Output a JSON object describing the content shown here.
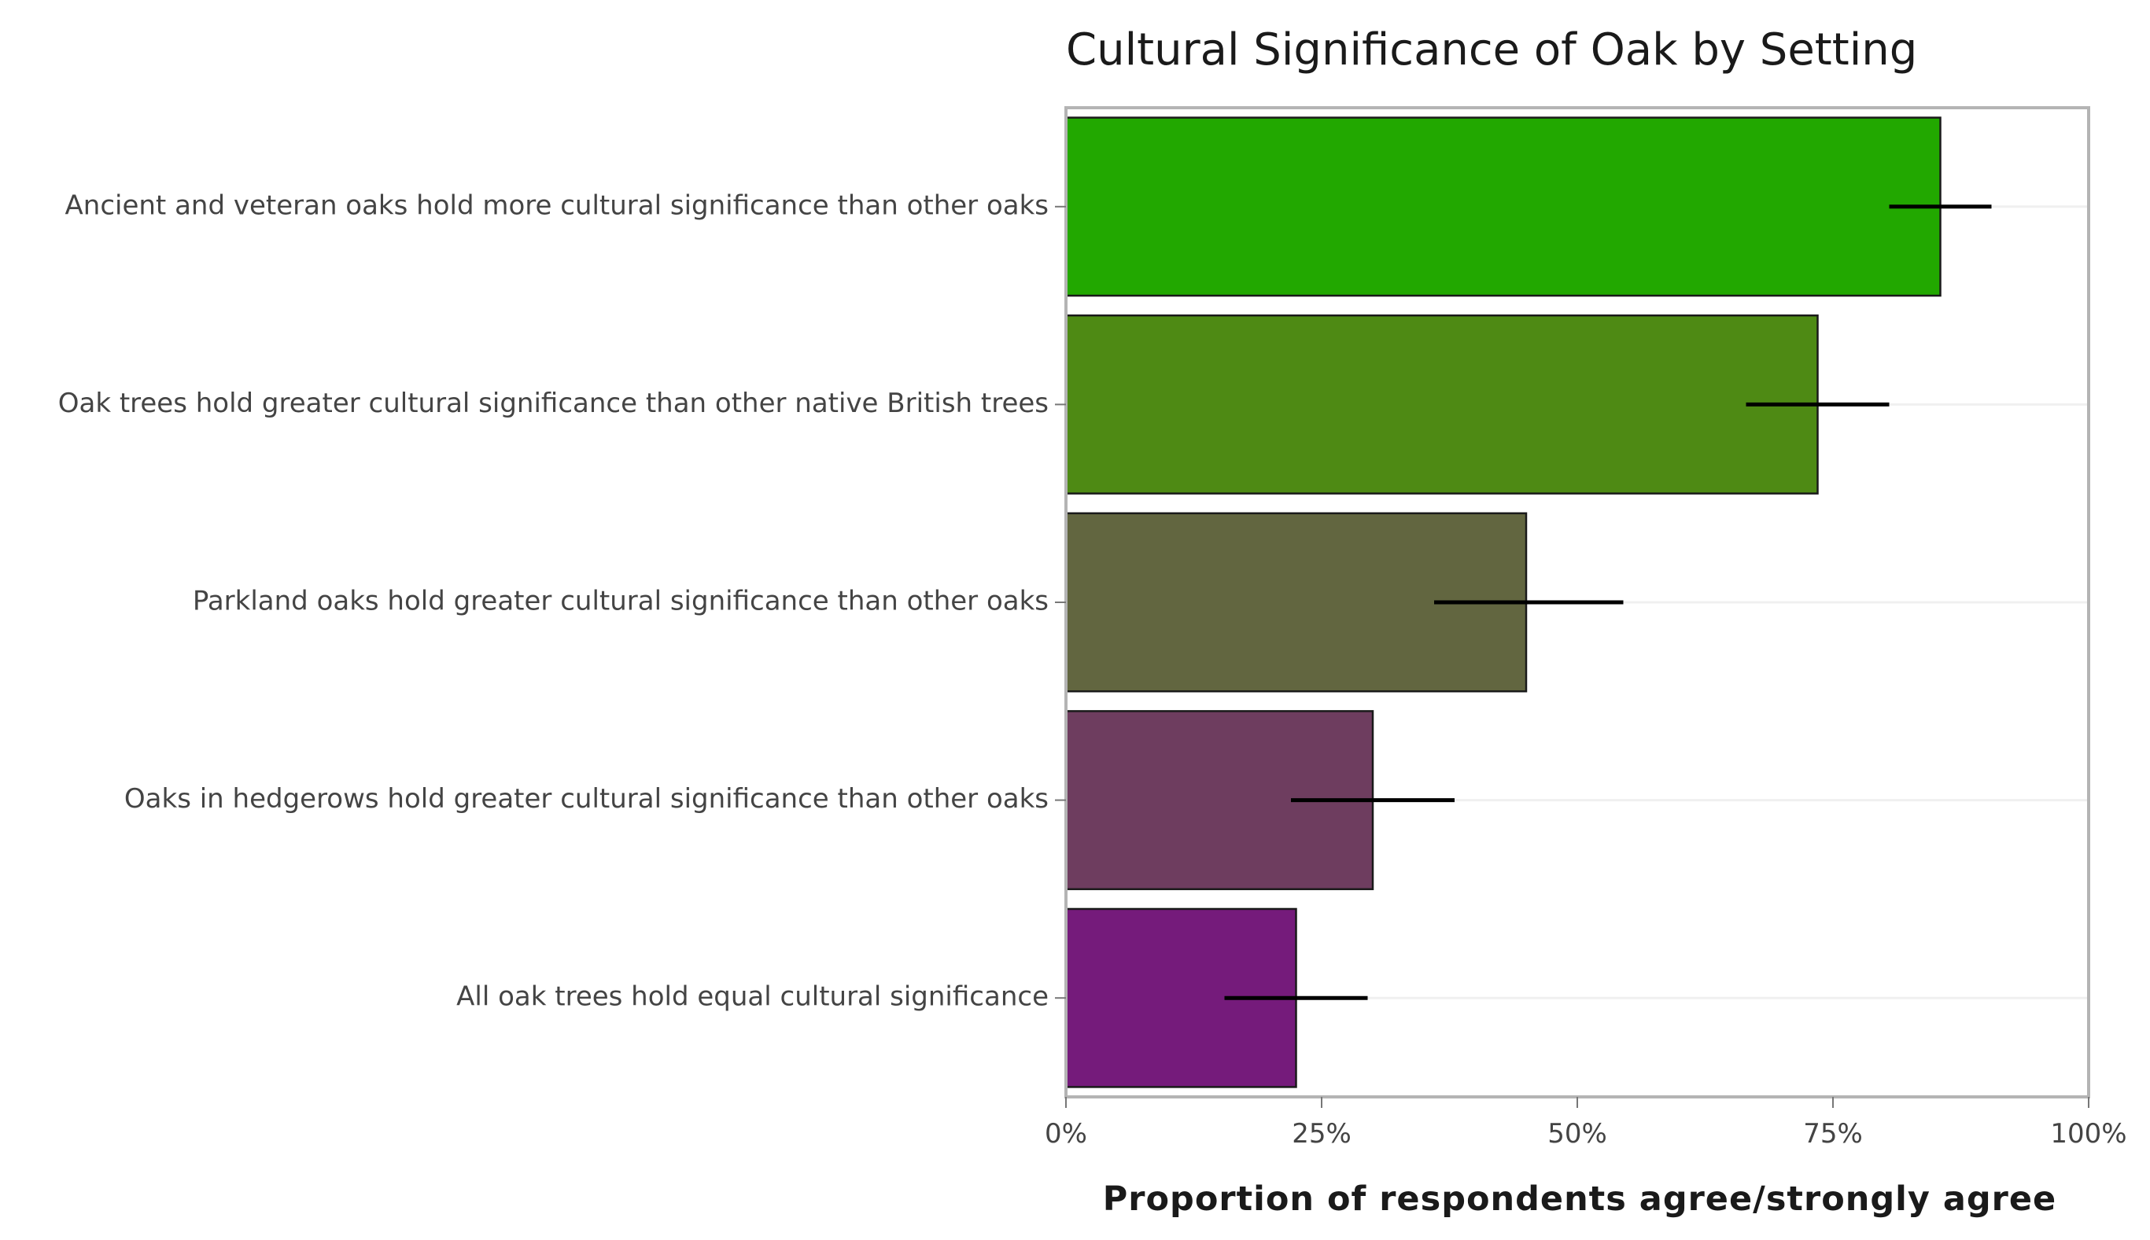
{
  "chart_data": {
    "type": "bar",
    "orientation": "horizontal",
    "title": "Cultural Significance of Oak by Setting",
    "xlabel": "Proportion of respondents agree/strongly agree",
    "ylabel": "",
    "xlim": [
      0,
      100
    ],
    "x_unit": "%",
    "grid": true,
    "categories": [
      "Ancient and veteran oaks hold more cultural significance than other oaks",
      "Oak trees hold greater cultural significance than other native British trees",
      "Parkland oaks hold greater cultural significance than other oaks",
      "Oaks in hedgerows hold greater cultural significance than other oaks",
      "All oak trees hold equal cultural significance"
    ],
    "values": [
      85.5,
      73.5,
      45,
      30,
      22.5
    ],
    "error_low": [
      80.5,
      66.5,
      36,
      22,
      15.5
    ],
    "error_high": [
      90.5,
      80.5,
      54.5,
      38,
      29.5
    ],
    "colors": [
      "#22a800",
      "#4e8a14",
      "#626640",
      "#6e3d5f",
      "#751b7b"
    ],
    "x_ticks": [
      {
        "value": 0,
        "label": "0%"
      },
      {
        "value": 25,
        "label": "25%"
      },
      {
        "value": 50,
        "label": "50%"
      },
      {
        "value": 75,
        "label": "75%"
      },
      {
        "value": 100,
        "label": "100%"
      }
    ]
  }
}
